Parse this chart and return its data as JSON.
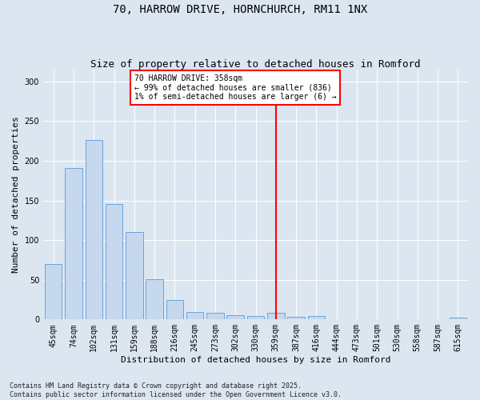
{
  "title": "70, HARROW DRIVE, HORNCHURCH, RM11 1NX",
  "subtitle": "Size of property relative to detached houses in Romford",
  "xlabel": "Distribution of detached houses by size in Romford",
  "ylabel": "Number of detached properties",
  "footnote1": "Contains HM Land Registry data © Crown copyright and database right 2025.",
  "footnote2": "Contains public sector information licensed under the Open Government Licence v3.0.",
  "bar_labels": [
    "45sqm",
    "74sqm",
    "102sqm",
    "131sqm",
    "159sqm",
    "188sqm",
    "216sqm",
    "245sqm",
    "273sqm",
    "302sqm",
    "330sqm",
    "359sqm",
    "387sqm",
    "416sqm",
    "444sqm",
    "473sqm",
    "501sqm",
    "530sqm",
    "558sqm",
    "587sqm",
    "615sqm"
  ],
  "bar_values": [
    70,
    191,
    226,
    146,
    110,
    51,
    25,
    9,
    8,
    5,
    4,
    8,
    3,
    4,
    0,
    0,
    0,
    0,
    0,
    0,
    2
  ],
  "bar_color": "#c5d8ed",
  "bar_edgecolor": "#5b9bd5",
  "background_color": "#dce6f1",
  "vline_color": "red",
  "vline_index": 11,
  "annotation_text": "70 HARROW DRIVE: 358sqm\n← 99% of detached houses are smaller (836)\n1% of semi-detached houses are larger (6) →",
  "annotation_box_edgecolor": "red",
  "annotation_box_facecolor": "white",
  "ylim": [
    0,
    315
  ],
  "yticks": [
    0,
    50,
    100,
    150,
    200,
    250,
    300
  ],
  "title_fontsize": 10,
  "subtitle_fontsize": 9,
  "axis_label_fontsize": 8,
  "tick_fontsize": 7,
  "annotation_fontsize": 7,
  "footnote_fontsize": 6
}
